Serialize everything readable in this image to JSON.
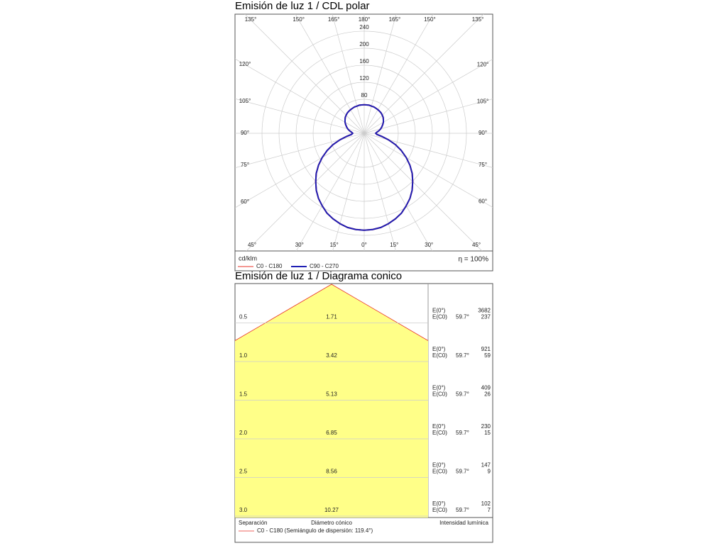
{
  "chart_data": [
    {
      "type": "polar",
      "title": "Emisión de luz 1 / CDL polar",
      "unit": "cd/klm",
      "efficiency": "η = 100%",
      "rlim": [
        0,
        280
      ],
      "rticks": [
        80,
        120,
        160,
        200,
        240
      ],
      "angle_ticks": [
        {
          "value": 0,
          "label": "0°"
        },
        {
          "value": 15,
          "label": "15°"
        },
        {
          "value": 30,
          "label": "30°"
        },
        {
          "value": 45,
          "label": "45°"
        },
        {
          "value": 60,
          "label": "60°"
        },
        {
          "value": 75,
          "label": "75°"
        },
        {
          "value": 90,
          "label": "90°"
        },
        {
          "value": 105,
          "label": "105°"
        },
        {
          "value": 120,
          "label": "120°"
        },
        {
          "value": 135,
          "label": "135°"
        },
        {
          "value": 150,
          "label": "150°"
        },
        {
          "value": 165,
          "label": "165°"
        },
        {
          "value": 180,
          "label": "180°"
        }
      ],
      "x": [
        0,
        5,
        10,
        15,
        20,
        25,
        30,
        35,
        40,
        45,
        50,
        55,
        60,
        65,
        70,
        75,
        80,
        85,
        90,
        95,
        100,
        105,
        110,
        115,
        120,
        125,
        130,
        135,
        140,
        145,
        150,
        155,
        160,
        165,
        170,
        175,
        180
      ],
      "series": [
        {
          "name": "C0 - C180",
          "color": "#e8332a",
          "values": [
            228,
            227,
            225,
            220,
            214,
            207,
            197,
            187,
            175,
            161,
            147,
            131,
            114,
            96,
            78,
            59,
            42,
            30,
            27,
            30,
            35,
            40,
            44,
            48,
            52,
            55,
            58,
            60,
            62,
            63,
            64,
            65,
            66,
            66,
            67,
            67,
            67
          ]
        },
        {
          "name": "C90 - C270",
          "color": "#1f1fb4",
          "values": [
            228,
            227,
            225,
            220,
            214,
            207,
            197,
            187,
            175,
            161,
            147,
            131,
            114,
            96,
            78,
            59,
            42,
            30,
            27,
            30,
            35,
            40,
            44,
            48,
            52,
            55,
            58,
            60,
            62,
            63,
            64,
            65,
            66,
            66,
            67,
            67,
            67
          ]
        }
      ]
    },
    {
      "type": "cone",
      "title": "Emisión de luz 1 / Diagrama conico",
      "ylim": [
        0,
        3
      ],
      "half_angle": 59.7,
      "angle": {
        "value": 59.7,
        "label": "59.7°"
      },
      "color": "#ffff88",
      "edge_color": "#e8332a",
      "separation": [
        {
          "value": 0.5,
          "label": "0.5"
        },
        {
          "value": 1,
          "label": "1.0"
        },
        {
          "value": 1.5,
          "label": "1.5"
        },
        {
          "value": 2,
          "label": "2.0"
        },
        {
          "value": 2.5,
          "label": "2.5"
        },
        {
          "value": 3,
          "label": "3.0"
        }
      ],
      "diameter": [
        1.71,
        3.42,
        5.13,
        6.85,
        8.56,
        10.27
      ],
      "e0_label": "E(0°)",
      "ec0_label": "E(C0)",
      "e0": [
        3682,
        921,
        409,
        230,
        147,
        102
      ],
      "ec0": [
        237,
        59,
        26,
        15,
        9,
        7
      ],
      "footer": [
        "Separación",
        "Diámetro cónico",
        "Intensidad lumínica"
      ],
      "legend": "C0 - C180 (Semiángulo de dispersión: 119.4°)"
    }
  ]
}
